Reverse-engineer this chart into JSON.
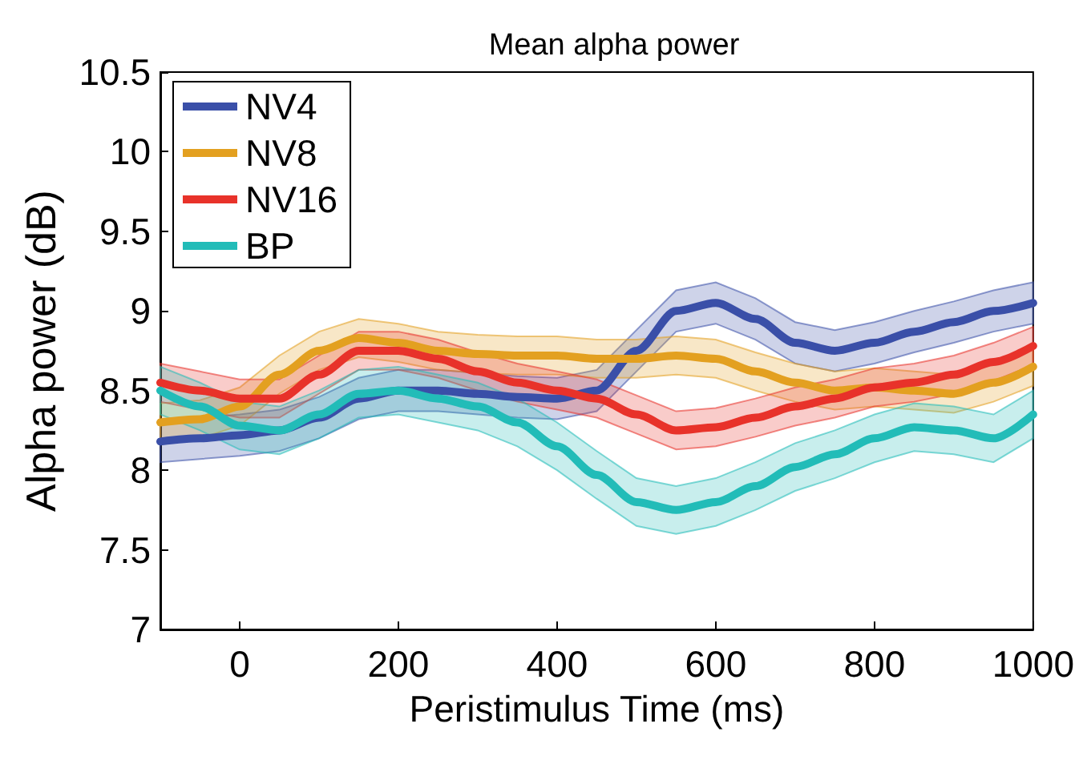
{
  "chart_data": {
    "type": "line",
    "title": "Mean alpha power",
    "xlabel": "Peristimulus Time (ms)",
    "ylabel": "Alpha power (dB)",
    "x": [
      -100,
      -50,
      0,
      50,
      100,
      150,
      200,
      250,
      300,
      350,
      400,
      450,
      500,
      550,
      600,
      650,
      700,
      750,
      800,
      850,
      900,
      950,
      1000
    ],
    "series": [
      {
        "name": "NV4",
        "color": "#3a4fa8",
        "values": [
          8.18,
          8.2,
          8.22,
          8.25,
          8.33,
          8.45,
          8.5,
          8.5,
          8.48,
          8.46,
          8.45,
          8.5,
          8.75,
          9.0,
          9.05,
          8.95,
          8.8,
          8.75,
          8.8,
          8.87,
          8.93,
          9.0,
          9.05
        ],
        "lower": [
          8.05,
          8.07,
          8.09,
          8.12,
          8.2,
          8.32,
          8.37,
          8.37,
          8.35,
          8.33,
          8.32,
          8.37,
          8.62,
          8.87,
          8.92,
          8.82,
          8.67,
          8.62,
          8.67,
          8.74,
          8.8,
          8.87,
          8.92
        ],
        "upper": [
          8.31,
          8.33,
          8.35,
          8.38,
          8.46,
          8.58,
          8.63,
          8.63,
          8.61,
          8.59,
          8.58,
          8.63,
          8.88,
          9.13,
          9.18,
          9.08,
          8.93,
          8.88,
          8.93,
          9.0,
          9.06,
          9.13,
          9.18
        ]
      },
      {
        "name": "NV8",
        "color": "#e3a020",
        "values": [
          8.3,
          8.32,
          8.4,
          8.6,
          8.75,
          8.83,
          8.8,
          8.75,
          8.73,
          8.72,
          8.72,
          8.7,
          8.7,
          8.72,
          8.7,
          8.62,
          8.55,
          8.5,
          8.52,
          8.5,
          8.48,
          8.55,
          8.65
        ],
        "lower": [
          8.18,
          8.2,
          8.28,
          8.48,
          8.63,
          8.71,
          8.68,
          8.63,
          8.61,
          8.6,
          8.6,
          8.58,
          8.58,
          8.6,
          8.58,
          8.5,
          8.43,
          8.38,
          8.4,
          8.38,
          8.36,
          8.43,
          8.53
        ],
        "upper": [
          8.42,
          8.44,
          8.52,
          8.72,
          8.87,
          8.95,
          8.92,
          8.87,
          8.85,
          8.84,
          8.84,
          8.82,
          8.82,
          8.84,
          8.82,
          8.74,
          8.67,
          8.62,
          8.64,
          8.62,
          8.6,
          8.67,
          8.77
        ]
      },
      {
        "name": "NV16",
        "color": "#e8322a",
        "values": [
          8.55,
          8.5,
          8.45,
          8.45,
          8.6,
          8.75,
          8.75,
          8.7,
          8.62,
          8.55,
          8.5,
          8.45,
          8.35,
          8.25,
          8.27,
          8.33,
          8.4,
          8.45,
          8.52,
          8.55,
          8.6,
          8.68,
          8.78
        ],
        "lower": [
          8.43,
          8.38,
          8.33,
          8.33,
          8.48,
          8.63,
          8.63,
          8.58,
          8.5,
          8.43,
          8.38,
          8.33,
          8.23,
          8.13,
          8.15,
          8.21,
          8.28,
          8.33,
          8.4,
          8.43,
          8.48,
          8.56,
          8.66
        ],
        "upper": [
          8.67,
          8.62,
          8.57,
          8.57,
          8.72,
          8.87,
          8.87,
          8.82,
          8.74,
          8.67,
          8.62,
          8.57,
          8.47,
          8.37,
          8.39,
          8.45,
          8.52,
          8.57,
          8.64,
          8.67,
          8.72,
          8.8,
          8.9
        ]
      },
      {
        "name": "BP",
        "color": "#22bcb8",
        "values": [
          8.5,
          8.4,
          8.28,
          8.25,
          8.35,
          8.48,
          8.5,
          8.45,
          8.4,
          8.3,
          8.15,
          7.97,
          7.8,
          7.75,
          7.8,
          7.9,
          8.02,
          8.1,
          8.2,
          8.27,
          8.25,
          8.2,
          8.35
        ],
        "lower": [
          8.35,
          8.25,
          8.13,
          8.1,
          8.2,
          8.33,
          8.35,
          8.3,
          8.25,
          8.15,
          8.0,
          7.82,
          7.65,
          7.6,
          7.65,
          7.75,
          7.87,
          7.95,
          8.05,
          8.12,
          8.1,
          8.05,
          8.2
        ],
        "upper": [
          8.65,
          8.55,
          8.43,
          8.4,
          8.5,
          8.63,
          8.65,
          8.6,
          8.55,
          8.45,
          8.3,
          8.12,
          7.95,
          7.9,
          7.95,
          8.05,
          8.17,
          8.25,
          8.35,
          8.42,
          8.4,
          8.35,
          8.5
        ]
      }
    ],
    "xlim": [
      -100,
      1000
    ],
    "xticks": [
      0,
      200,
      400,
      600,
      800,
      1000
    ],
    "ylim": [
      7,
      10.5
    ],
    "yticks": [
      7,
      7.5,
      8,
      8.5,
      9,
      9.5,
      10,
      10.5
    ],
    "grid": false,
    "legend": "top left",
    "marker": "none",
    "line_style": "solid"
  }
}
